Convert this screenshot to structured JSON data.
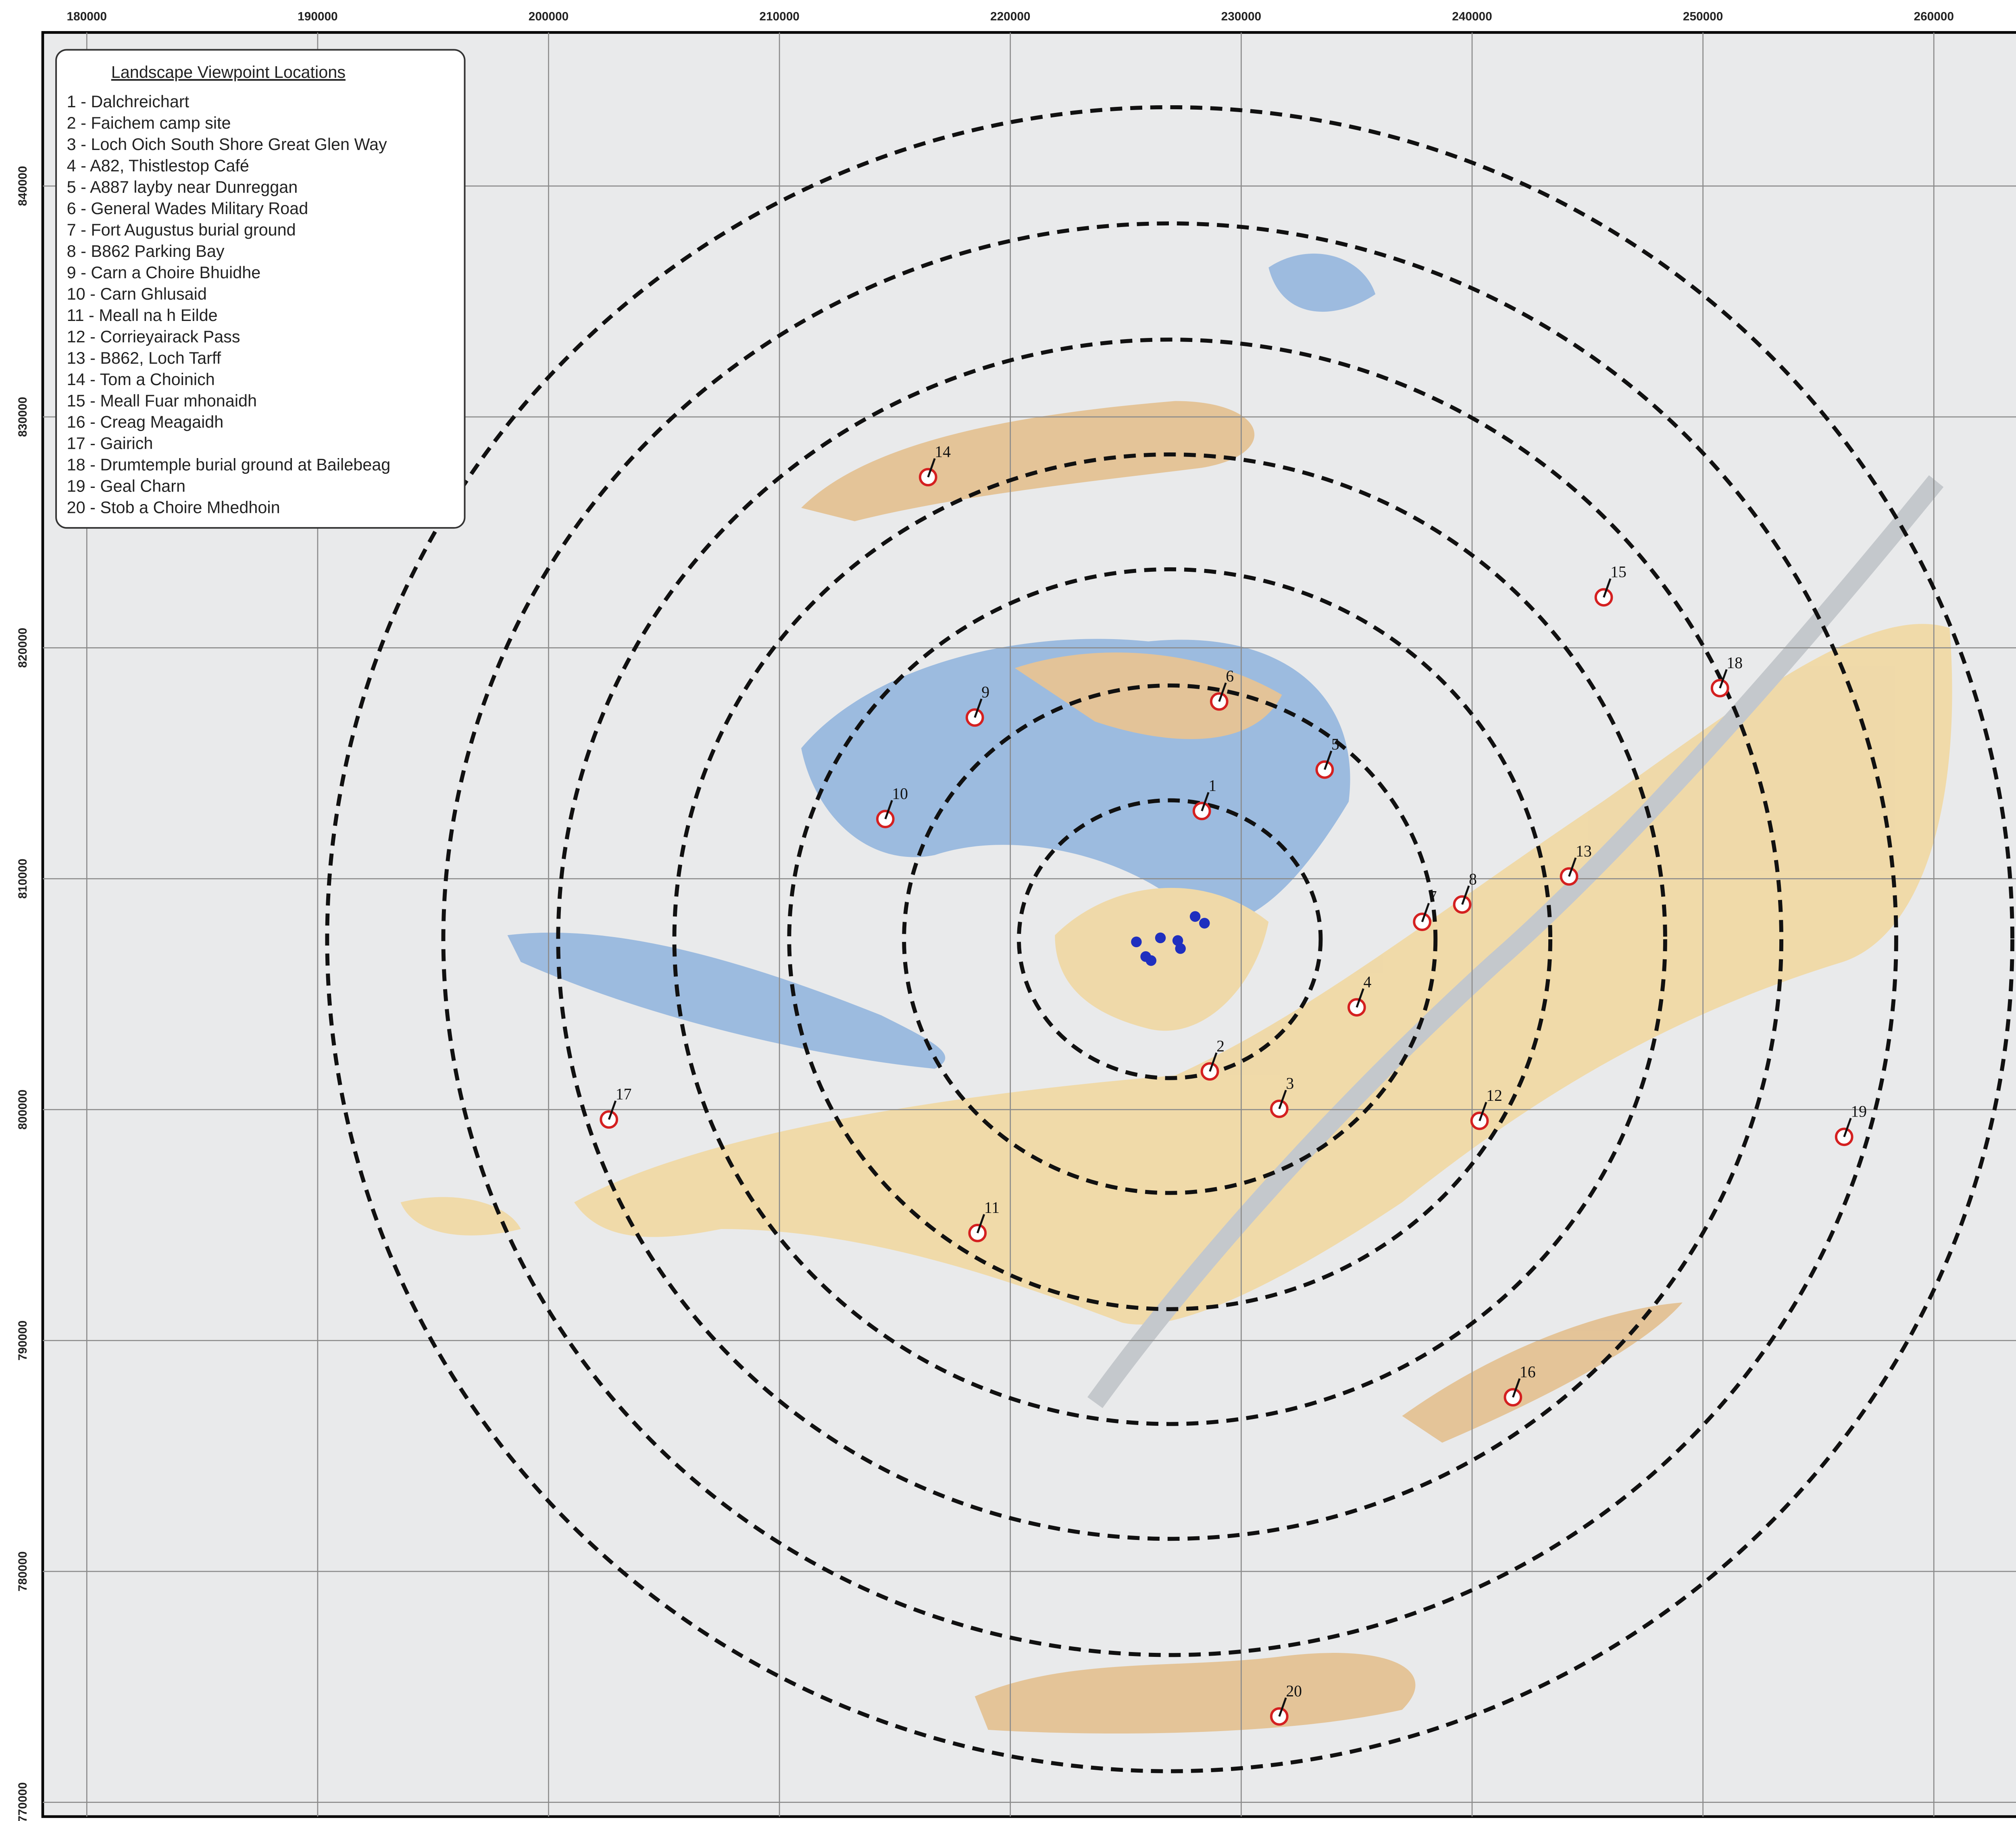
{
  "x_ticks": [
    180000,
    190000,
    200000,
    210000,
    220000,
    230000,
    240000,
    250000,
    260000
  ],
  "y_ticks": [
    840000,
    830000,
    820000,
    810000,
    800000,
    790000,
    780000,
    770000
  ],
  "legend": {
    "title": "Landscape Viewpoint Locations",
    "items": [
      "1 - Dalchreichart",
      "2 - Faichem camp site",
      "3 - Loch Oich South Shore Great Glen Way",
      "4 - A82, Thistlestop Café",
      "5 - A887 layby near Dunreggan",
      "6 - General Wades Military Road",
      "7 - Fort Augustus burial ground",
      "8 - B862 Parking Bay",
      "9 - Carn a Choire Bhuidhe",
      "10 - Carn Ghlusaid",
      "11 - Meall na h Eilde",
      "12 - Corrieyairack Pass",
      "13 - B862, Loch Tarff",
      "14 - Tom a Choinich",
      "15 - Meall Fuar mhonaidh",
      "16 - Creag Meagaidh",
      "17 - Gairich",
      "18 - Drumtemple burial ground at Bailebeag",
      "19 - Geal Charn",
      "20 - Stob a Choire Mhedhoin"
    ]
  },
  "viewpoints": [
    1,
    2,
    3,
    4,
    5,
    6,
    7,
    8,
    9,
    10,
    11,
    12,
    13,
    14,
    15,
    16,
    17,
    18,
    19,
    20
  ]
}
